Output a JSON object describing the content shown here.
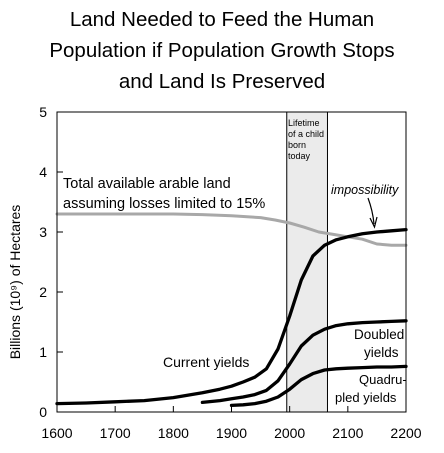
{
  "chart_data": {
    "type": "line",
    "title_lines": [
      "Land Needed to Feed the Human",
      "Population if Population Growth Stops",
      "and Land Is Preserved"
    ],
    "ylabel": "Billions (10⁹) of Hectares",
    "xlim": [
      1600,
      2200
    ],
    "ylim": [
      0,
      5
    ],
    "xticks": [
      1600,
      1700,
      1800,
      1900,
      2000,
      2100,
      2200
    ],
    "yticks": [
      0,
      1,
      2,
      3,
      4,
      5
    ],
    "grid": false,
    "shaded_region": {
      "x": [
        1995,
        2065
      ],
      "label_lines": [
        "Lifetime",
        "of a child",
        "born",
        "today"
      ]
    },
    "series": [
      {
        "name": "Total available arable land assuming losses limited to 15%",
        "color": "#a8a8a8",
        "x": [
          1600,
          1650,
          1700,
          1750,
          1800,
          1850,
          1900,
          1950,
          1975,
          2000,
          2025,
          2050,
          2075,
          2100,
          2125,
          2150,
          2175,
          2200
        ],
        "y": [
          3.3,
          3.3,
          3.3,
          3.3,
          3.3,
          3.29,
          3.27,
          3.24,
          3.2,
          3.15,
          3.08,
          3.0,
          2.96,
          2.92,
          2.88,
          2.8,
          2.78,
          2.78
        ]
      },
      {
        "name": "Current yields",
        "color": "#000000",
        "x": [
          1600,
          1650,
          1700,
          1750,
          1800,
          1850,
          1880,
          1900,
          1920,
          1940,
          1960,
          1980,
          2000,
          2020,
          2040,
          2060,
          2080,
          2100,
          2125,
          2150,
          2175,
          2200
        ],
        "y": [
          0.14,
          0.15,
          0.17,
          0.19,
          0.24,
          0.32,
          0.38,
          0.43,
          0.5,
          0.58,
          0.72,
          1.05,
          1.6,
          2.2,
          2.6,
          2.78,
          2.87,
          2.92,
          2.97,
          3.0,
          3.02,
          3.04
        ]
      },
      {
        "name": "Doubled yields",
        "color": "#000000",
        "x": [
          1850,
          1880,
          1900,
          1920,
          1940,
          1960,
          1980,
          2000,
          2020,
          2040,
          2060,
          2080,
          2100,
          2125,
          2150,
          2175,
          2200
        ],
        "y": [
          0.16,
          0.19,
          0.22,
          0.25,
          0.29,
          0.36,
          0.52,
          0.8,
          1.1,
          1.28,
          1.38,
          1.44,
          1.47,
          1.49,
          1.5,
          1.51,
          1.52
        ]
      },
      {
        "name": "Quadrupled yields",
        "color": "#000000",
        "x": [
          1900,
          1920,
          1940,
          1960,
          1980,
          2000,
          2020,
          2040,
          2060,
          2080,
          2100,
          2125,
          2150,
          2175,
          2200
        ],
        "y": [
          0.11,
          0.12,
          0.14,
          0.18,
          0.25,
          0.38,
          0.54,
          0.64,
          0.7,
          0.72,
          0.73,
          0.74,
          0.75,
          0.75,
          0.76
        ]
      }
    ],
    "annotations": {
      "arable_land": [
        "Total available arable land",
        "assuming losses limited to 15%"
      ],
      "impossibility": "impossibility",
      "current_yields": "Current yields",
      "doubled_yields": [
        "Doubled",
        "yields"
      ],
      "quadrupled_yields": [
        "Quadru-",
        "pled yields"
      ]
    }
  }
}
